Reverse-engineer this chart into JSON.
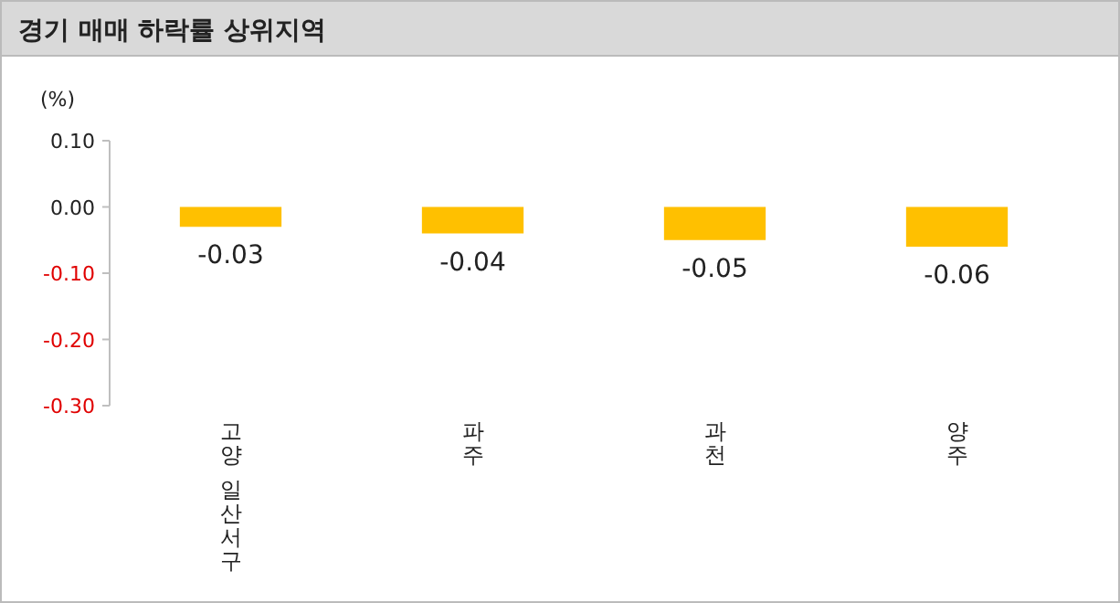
{
  "chart_data": {
    "type": "bar",
    "title": "경기 매매 하락률 상위지역",
    "ylabel": "(%)",
    "categories": [
      "고양 일산서구",
      "파주",
      "과천",
      "양주"
    ],
    "values": [
      -0.03,
      -0.04,
      -0.05,
      -0.06
    ],
    "color": "#ffc000",
    "ylim": [
      -0.3,
      0.1
    ],
    "yticks": [
      {
        "value": 0.1,
        "label": "0.10"
      },
      {
        "value": 0,
        "label": "0.00"
      },
      {
        "value": -0.1,
        "label": "-0.10"
      },
      {
        "value": -0.2,
        "label": "-0.20"
      },
      {
        "value": -0.3,
        "label": "-0.30"
      }
    ],
    "data_labels": true,
    "grid": false
  }
}
